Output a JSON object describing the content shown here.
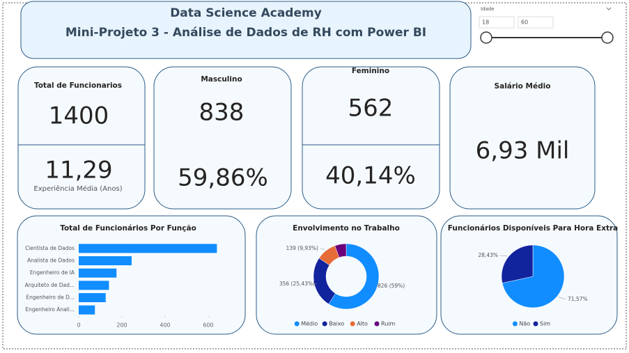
{
  "header": {
    "title": "Data Science Academy",
    "subtitle": "Mini-Projeto 3 - Análise de Dados de RH com Power BI"
  },
  "slicer": {
    "label": "Idade",
    "from": 18,
    "to": 60
  },
  "cards": [
    {
      "title": "Total de Funcionarios",
      "value": 1400,
      "sub_value": "11,29",
      "sub_label": "Experiência Média (Anos)"
    },
    {
      "title": "Masculino",
      "value": 838,
      "sub_value": "59,86%"
    },
    {
      "title": "Feminino",
      "value": 562,
      "sub_value": "40,14%"
    },
    {
      "title": "Salário Médio",
      "value": "6,93 Mil"
    }
  ],
  "chart_data": [
    {
      "type": "hbar",
      "title": "Total de Funcionários Por Função",
      "categories": [
        "Cientista de Dados",
        "Analista de Dados",
        "Engenheiro de IA",
        "Arquiteto de Dad...",
        "Engenheiro de D...",
        "Engenheiro Anali..."
      ],
      "values": [
        640,
        245,
        175,
        140,
        125,
        75
      ],
      "color": "#118DFF",
      "xlim": [
        0,
        700
      ],
      "xticks": [
        0,
        200,
        400,
        600
      ]
    },
    {
      "type": "donut",
      "title": "Envolvimento no Trabalho",
      "categories": [
        "Médio",
        "Baixo",
        "Alto",
        "Ruim"
      ],
      "values": [
        826,
        356,
        139,
        79
      ],
      "value_labels": [
        "826 (59%)",
        "356 (25,43%)",
        "139 (9,93%)",
        null
      ],
      "colors": [
        "#118DFF",
        "#12239E",
        "#E66C37",
        "#6B007B"
      ]
    },
    {
      "type": "pie",
      "title": "Funcionários Disponíveis Para Hora Extra",
      "categories": [
        "Não",
        "Sim"
      ],
      "values": [
        71.57,
        28.43
      ],
      "value_labels": [
        "71,57%",
        "28,43%"
      ],
      "colors": [
        "#118DFF",
        "#12239E"
      ]
    }
  ]
}
